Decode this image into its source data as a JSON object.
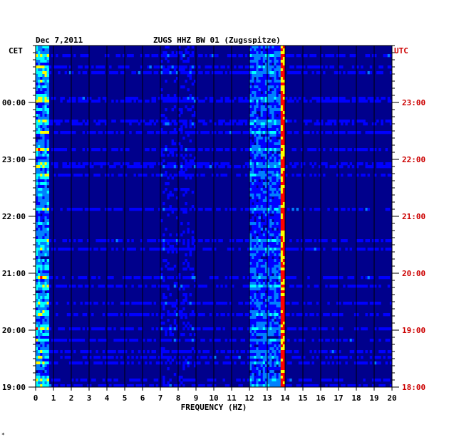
{
  "header": {
    "date": "Dec 7,2011",
    "station": "ZUGS HHZ BW 01 (Zugsspitze)",
    "left_zone": "CET",
    "right_zone": "UTC"
  },
  "chart_data": {
    "type": "heatmap",
    "title": "ZUGS HHZ BW 01 (Zugsspitze)",
    "xlabel": "FREQUENCY (HZ)",
    "xlim": [
      0,
      20
    ],
    "x_ticks": [
      "0",
      "1",
      "2",
      "3",
      "4",
      "5",
      "6",
      "7",
      "8",
      "9",
      "10",
      "11",
      "12",
      "13",
      "14",
      "15",
      "16",
      "17",
      "18",
      "19",
      "20"
    ],
    "left_ticks_cet": [
      "00:00",
      "23:00",
      "22:00",
      "21:00",
      "20:00",
      "19:00"
    ],
    "right_ticks_utc": [
      "23:00",
      "22:00",
      "21:00",
      "20:00",
      "19:00",
      "18:00"
    ],
    "time_range_utc": [
      "18:00",
      "23:40"
    ],
    "grid": true,
    "colormap": [
      "#000080",
      "#0000ff",
      "#0080ff",
      "#00ffff",
      "#ffff00",
      "#ff0000"
    ],
    "features": [
      {
        "kind": "low-frequency band",
        "freq_hz": [
          0,
          0.8
        ],
        "intensity": "high"
      },
      {
        "kind": "continuous line",
        "freq_hz": 13.9,
        "intensity": "very high"
      },
      {
        "kind": "broad band",
        "freq_hz": [
          12,
          14
        ],
        "intensity": "medium"
      },
      {
        "kind": "band",
        "freq_hz": [
          7,
          9
        ],
        "intensity": "low"
      }
    ]
  },
  "footer": {
    "mark": "*"
  }
}
